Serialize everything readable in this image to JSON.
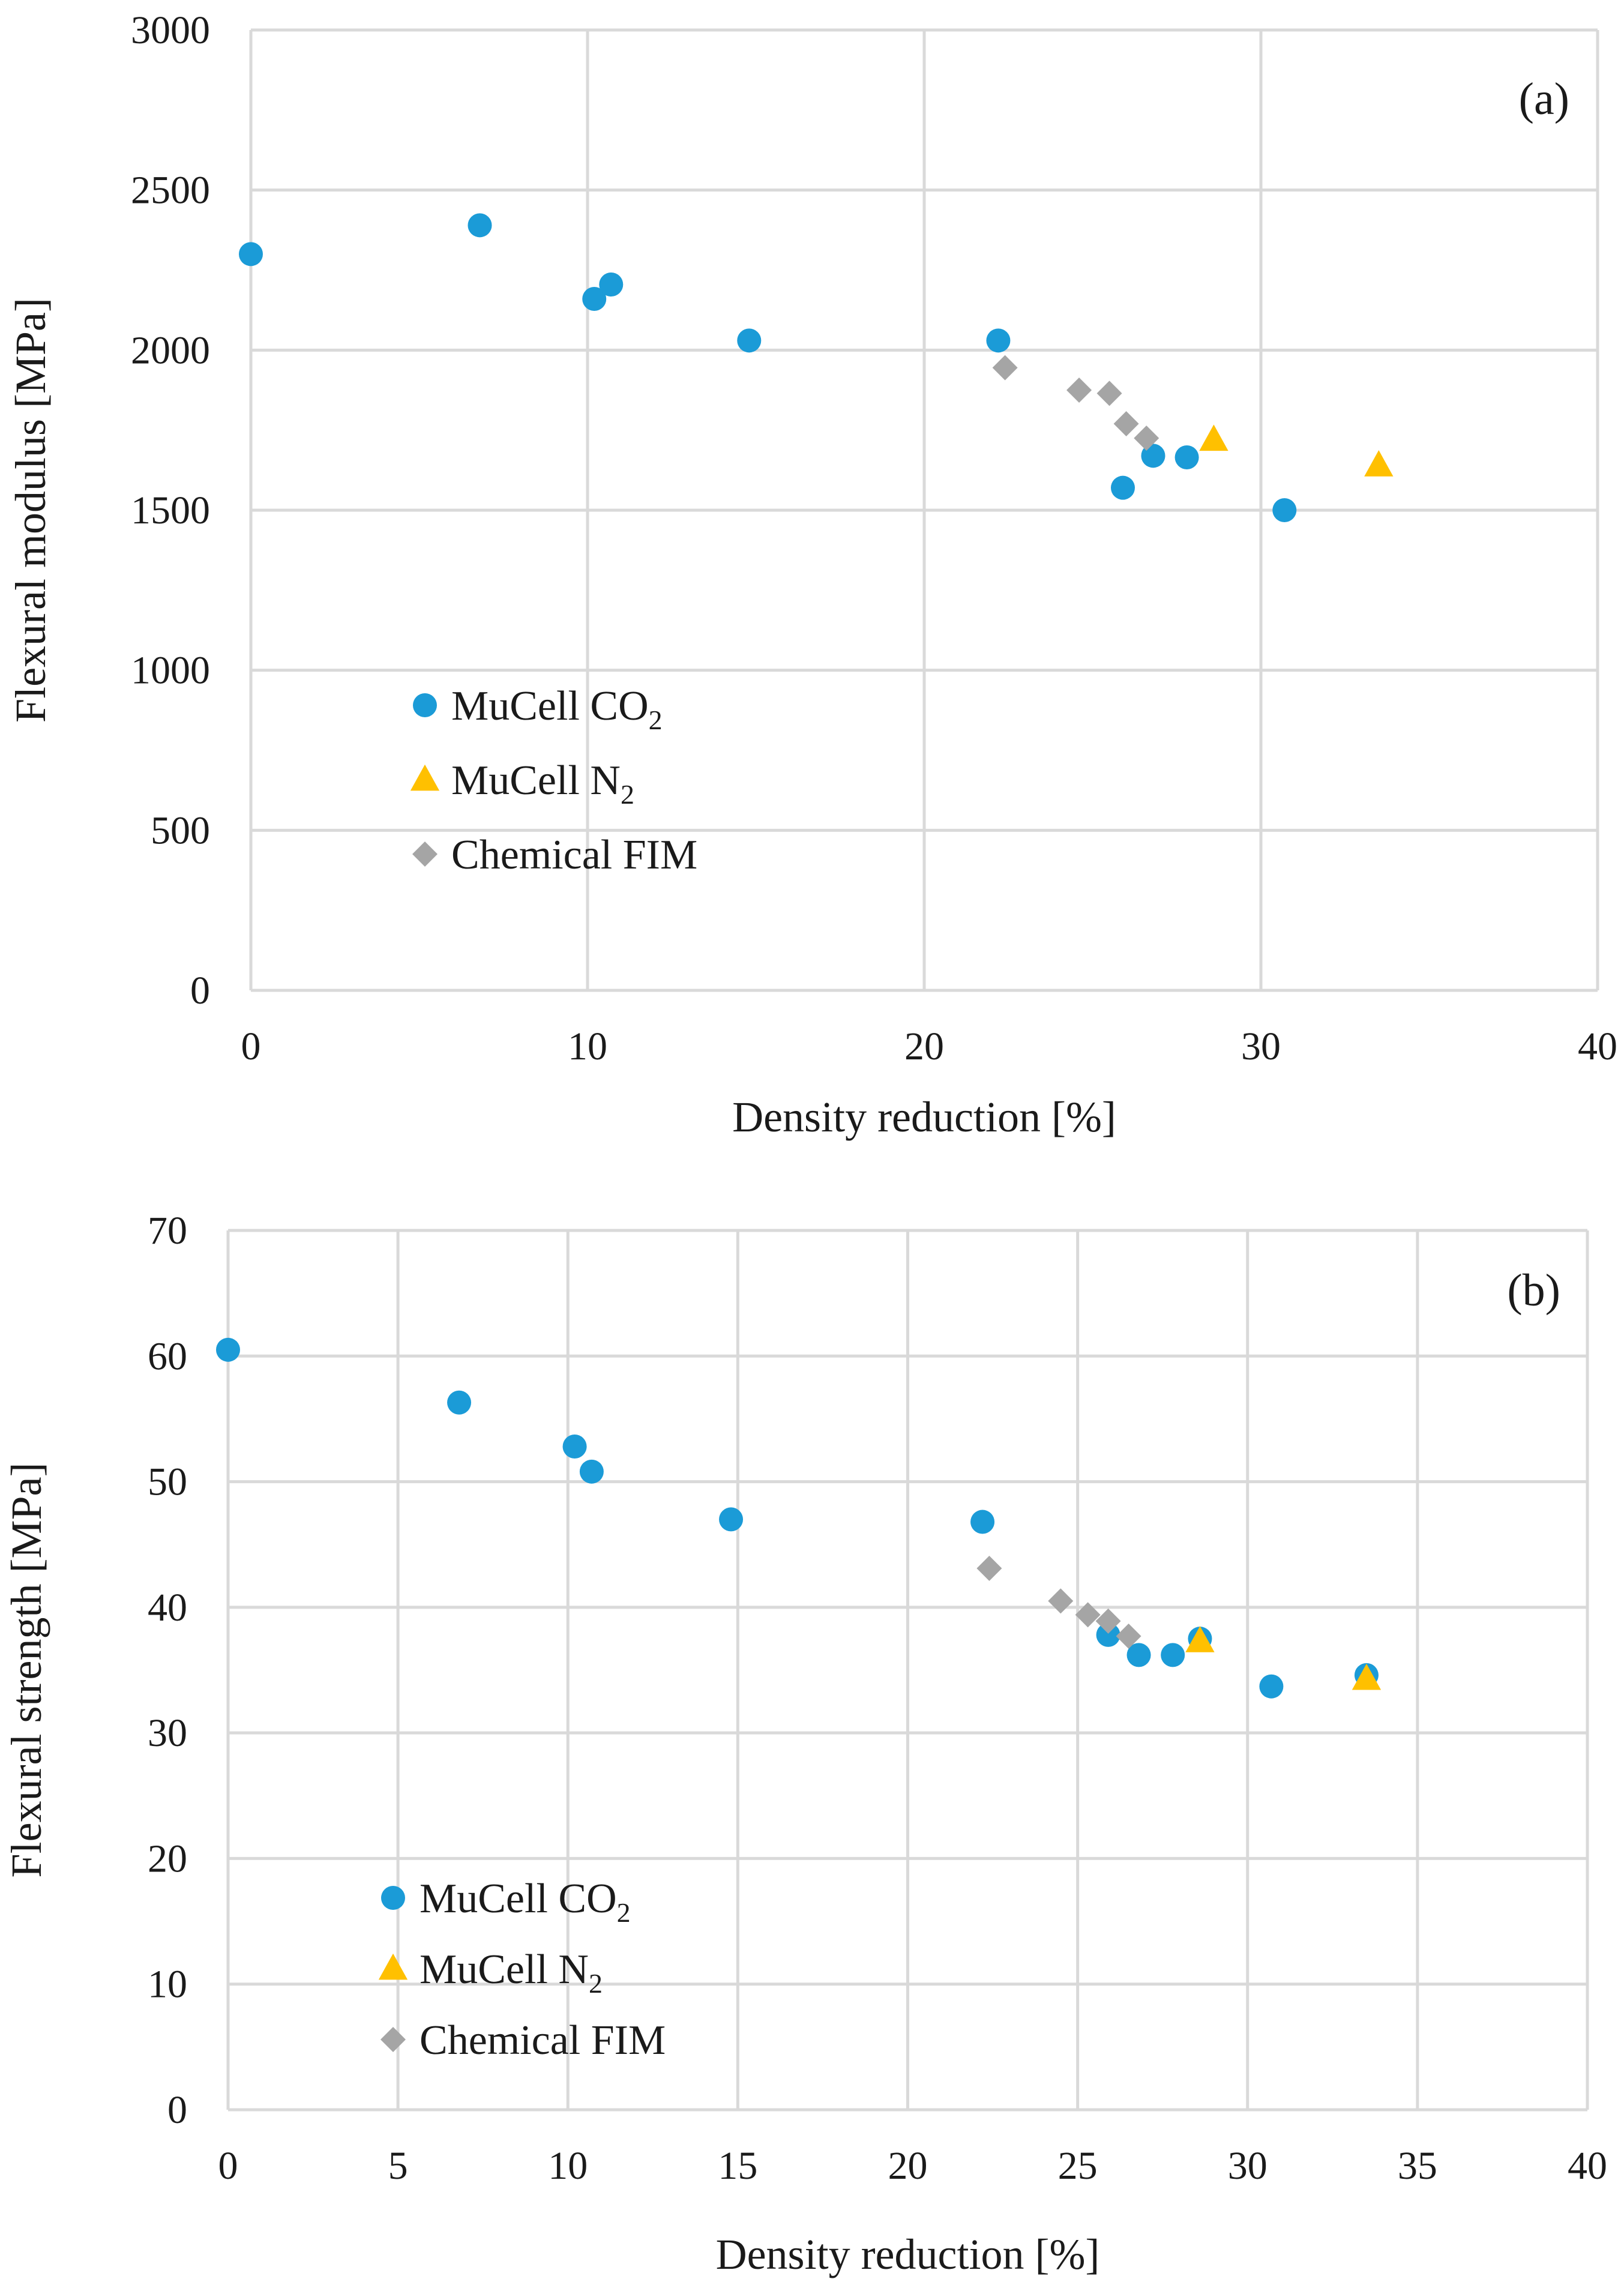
{
  "colors": {
    "co2": "#1b9bd7",
    "n2": "#ffc000",
    "fim": "#a5a5a5"
  },
  "chart_data": [
    {
      "type": "scatter",
      "panel_label": "(a)",
      "xlabel": "Density reduction [%]",
      "ylabel": "Flexural modulus [MPa]",
      "xlim": [
        0,
        40
      ],
      "ylim": [
        0,
        3000
      ],
      "xticks": [
        0,
        10,
        20,
        30,
        40
      ],
      "yticks": [
        0,
        500,
        1000,
        1500,
        2000,
        2500,
        3000
      ],
      "grid": true,
      "legend_position": "lower-left",
      "series": [
        {
          "name": "MuCell CO2",
          "legend_main": "MuCell CO",
          "legend_sub": "2",
          "marker": "circle",
          "color_key": "co2",
          "points": [
            [
              0,
              2300
            ],
            [
              6.8,
              2390
            ],
            [
              10.2,
              2160
            ],
            [
              10.7,
              2205
            ],
            [
              14.8,
              2030
            ],
            [
              22.2,
              2030
            ],
            [
              25.9,
              1570
            ],
            [
              26.8,
              1670
            ],
            [
              27.8,
              1665
            ],
            [
              30.7,
              1500
            ]
          ]
        },
        {
          "name": "MuCell N2",
          "legend_main": "MuCell N",
          "legend_sub": "2",
          "marker": "triangle",
          "color_key": "n2",
          "points": [
            [
              28.6,
              1720
            ],
            [
              33.5,
              1640
            ]
          ]
        },
        {
          "name": "Chemical FIM",
          "legend_main": "Chemical FIM",
          "legend_sub": "",
          "marker": "diamond",
          "color_key": "fim",
          "points": [
            [
              22.4,
              1945
            ],
            [
              24.6,
              1875
            ],
            [
              25.5,
              1865
            ],
            [
              26.0,
              1770
            ],
            [
              26.6,
              1725
            ]
          ]
        }
      ]
    },
    {
      "type": "scatter",
      "panel_label": "(b)",
      "xlabel": "Density reduction [%]",
      "ylabel": "Flexural strength [MPa]",
      "xlim": [
        0,
        40
      ],
      "ylim": [
        0,
        70
      ],
      "xticks": [
        0,
        5,
        10,
        15,
        20,
        25,
        30,
        35,
        40
      ],
      "yticks": [
        0,
        10,
        20,
        30,
        40,
        50,
        60,
        70
      ],
      "grid": true,
      "legend_position": "lower-left",
      "series": [
        {
          "name": "MuCell CO2",
          "legend_main": "MuCell CO",
          "legend_sub": "2",
          "marker": "circle",
          "color_key": "co2",
          "points": [
            [
              0,
              60.5
            ],
            [
              6.8,
              56.3
            ],
            [
              10.2,
              52.8
            ],
            [
              10.7,
              50.8
            ],
            [
              14.8,
              47.0
            ],
            [
              22.2,
              46.8
            ],
            [
              25.9,
              37.8
            ],
            [
              26.8,
              36.2
            ],
            [
              27.8,
              36.2
            ],
            [
              28.6,
              37.5
            ],
            [
              30.7,
              33.7
            ],
            [
              33.5,
              34.6
            ]
          ]
        },
        {
          "name": "MuCell N2",
          "legend_main": "MuCell N",
          "legend_sub": "2",
          "marker": "triangle",
          "color_key": "n2",
          "points": [
            [
              28.6,
              37.3
            ],
            [
              33.5,
              34.3
            ]
          ]
        },
        {
          "name": "Chemical FIM",
          "legend_main": "Chemical FIM",
          "legend_sub": "",
          "marker": "diamond",
          "color_key": "fim",
          "points": [
            [
              22.4,
              43.1
            ],
            [
              24.5,
              40.5
            ],
            [
              25.3,
              39.4
            ],
            [
              25.9,
              38.9
            ],
            [
              26.5,
              37.7
            ]
          ]
        }
      ]
    }
  ]
}
